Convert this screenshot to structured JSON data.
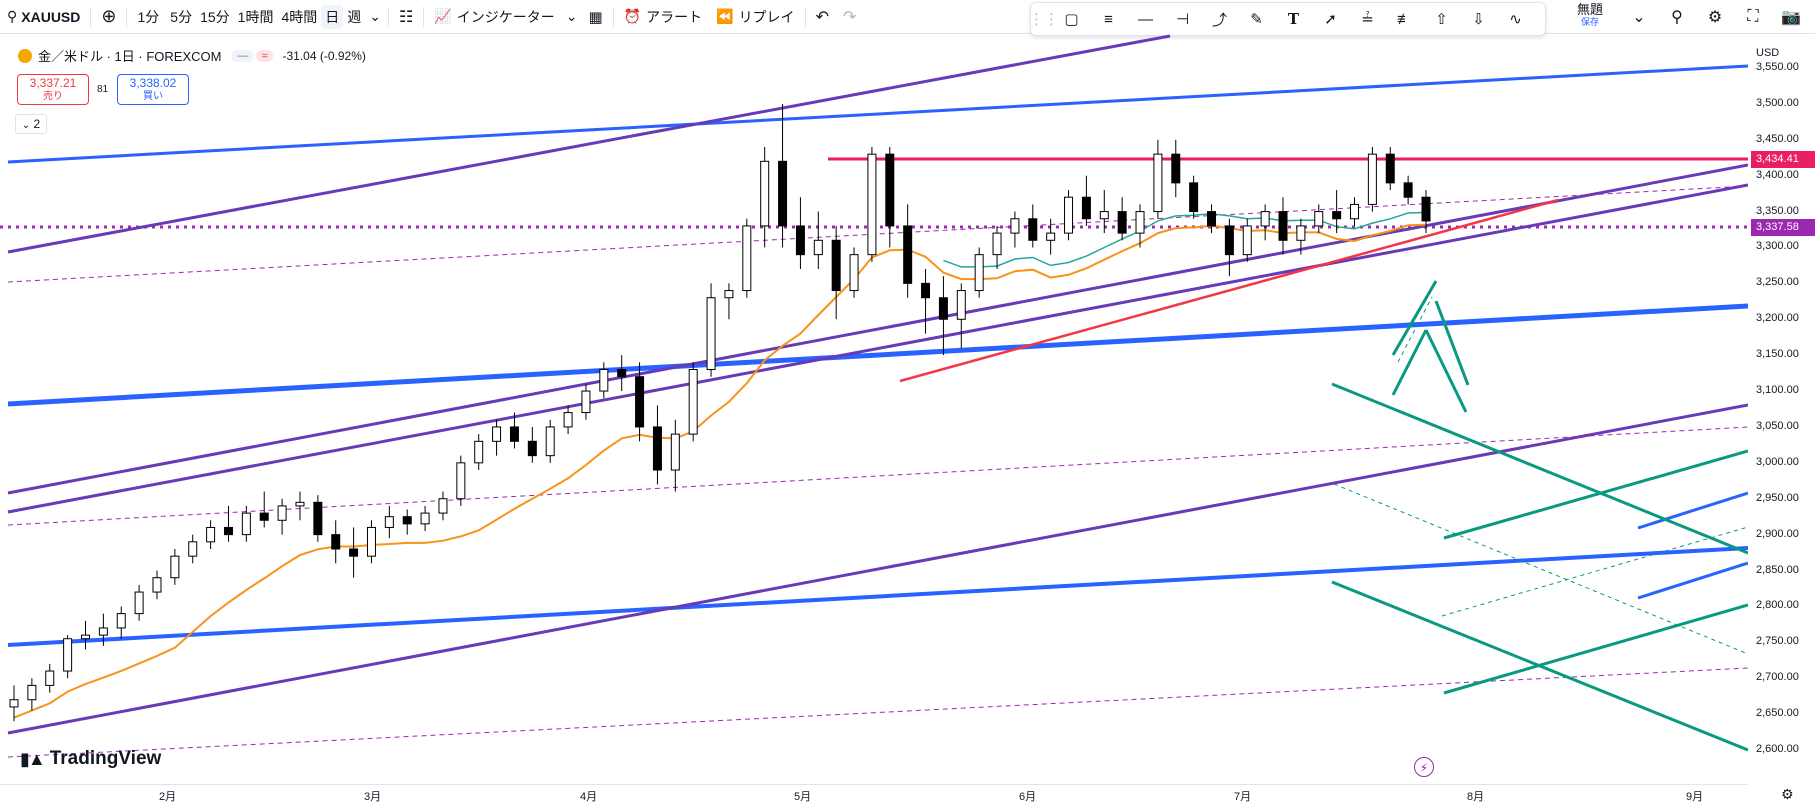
{
  "toolbar": {
    "symbol": "XAUUSD",
    "intervals": [
      "1分",
      "5分",
      "15分",
      "1時間",
      "4時間",
      "日",
      "週"
    ],
    "active_interval": "日",
    "indicators_label": "インジケーター",
    "alert_label": "アラート",
    "replay_label": "リプレイ"
  },
  "save": {
    "title": "無題",
    "subtitle": "保存"
  },
  "legend": {
    "title": "金／米ドル · 1日 · FOREXCOM",
    "change": "-31.04 (-0.92%)",
    "bid": {
      "price": "3,337.21",
      "label": "売り"
    },
    "ask": {
      "price": "3,338.02",
      "label": "買い"
    },
    "spread": "81",
    "indicator_count": "2"
  },
  "price_axis": {
    "currency": "USD",
    "labels": [
      "3,550.00",
      "3,500.00",
      "3,450.00",
      "3,400.00",
      "3,350.00",
      "3,300.00",
      "3,250.00",
      "3,200.00",
      "3,150.00",
      "3,100.00",
      "3,050.00",
      "3,000.00",
      "2,950.00",
      "2,900.00",
      "2,850.00",
      "2,800.00",
      "2,750.00",
      "2,700.00",
      "2,650.00",
      "2,600.00"
    ],
    "resistance_tag": "3,434.41",
    "current_tag": "3,337.58"
  },
  "time_axis": {
    "labels": [
      "2月",
      "3月",
      "4月",
      "5月",
      "6月",
      "7月",
      "8月",
      "9月"
    ]
  },
  "brand": "TradingView",
  "colors": {
    "up": "#ffffff",
    "down": "#000000",
    "ma_orange": "#f7931a",
    "ma_teal": "#26a69a",
    "blue": "#2962ff",
    "purple": "#673ab7",
    "red": "#f23645",
    "crimson": "#e91e63",
    "green": "#089981",
    "dotted_purple": "#9c27b0"
  },
  "chart_data": {
    "type": "candlestick",
    "symbol": "XAUUSD",
    "y_range": [
      2580,
      3580
    ],
    "x_categories": [
      "2月",
      "3月",
      "4月",
      "5月",
      "6月",
      "7月",
      "8月",
      "9月"
    ],
    "horizontal_levels": [
      3434.41,
      3337.58
    ],
    "candles_approx": [
      [
        2660,
        2690,
        2640,
        2670
      ],
      [
        2670,
        2700,
        2655,
        2690
      ],
      [
        2690,
        2720,
        2680,
        2710
      ],
      [
        2710,
        2760,
        2700,
        2755
      ],
      [
        2755,
        2780,
        2740,
        2760
      ],
      [
        2760,
        2790,
        2745,
        2770
      ],
      [
        2770,
        2800,
        2755,
        2790
      ],
      [
        2790,
        2830,
        2780,
        2820
      ],
      [
        2820,
        2850,
        2810,
        2840
      ],
      [
        2840,
        2880,
        2830,
        2870
      ],
      [
        2870,
        2900,
        2860,
        2890
      ],
      [
        2890,
        2920,
        2880,
        2910
      ],
      [
        2910,
        2940,
        2890,
        2900
      ],
      [
        2900,
        2940,
        2890,
        2930
      ],
      [
        2930,
        2960,
        2910,
        2920
      ],
      [
        2920,
        2950,
        2900,
        2940
      ],
      [
        2940,
        2960,
        2920,
        2945
      ],
      [
        2945,
        2955,
        2890,
        2900
      ],
      [
        2900,
        2920,
        2860,
        2880
      ],
      [
        2880,
        2910,
        2840,
        2870
      ],
      [
        2870,
        2920,
        2860,
        2910
      ],
      [
        2910,
        2940,
        2895,
        2925
      ],
      [
        2925,
        2935,
        2900,
        2915
      ],
      [
        2915,
        2940,
        2905,
        2930
      ],
      [
        2930,
        2960,
        2920,
        2950
      ],
      [
        2950,
        3010,
        2940,
        3000
      ],
      [
        3000,
        3040,
        2990,
        3030
      ],
      [
        3030,
        3060,
        3010,
        3050
      ],
      [
        3050,
        3070,
        3020,
        3030
      ],
      [
        3030,
        3050,
        3000,
        3010
      ],
      [
        3010,
        3060,
        3000,
        3050
      ],
      [
        3050,
        3080,
        3040,
        3070
      ],
      [
        3070,
        3110,
        3060,
        3100
      ],
      [
        3100,
        3140,
        3090,
        3130
      ],
      [
        3130,
        3150,
        3100,
        3120
      ],
      [
        3120,
        3140,
        3030,
        3050
      ],
      [
        3050,
        3080,
        2970,
        2990
      ],
      [
        2990,
        3060,
        2960,
        3040
      ],
      [
        3040,
        3140,
        3030,
        3130
      ],
      [
        3130,
        3250,
        3120,
        3230
      ],
      [
        3230,
        3250,
        3200,
        3240
      ],
      [
        3240,
        3340,
        3230,
        3330
      ],
      [
        3330,
        3440,
        3300,
        3420
      ],
      [
        3420,
        3500,
        3300,
        3330
      ],
      [
        3330,
        3370,
        3270,
        3290
      ],
      [
        3290,
        3350,
        3270,
        3310
      ],
      [
        3310,
        3330,
        3200,
        3240
      ],
      [
        3240,
        3300,
        3230,
        3290
      ],
      [
        3290,
        3440,
        3280,
        3430
      ],
      [
        3430,
        3440,
        3300,
        3330
      ],
      [
        3330,
        3360,
        3230,
        3250
      ],
      [
        3250,
        3270,
        3180,
        3230
      ],
      [
        3230,
        3260,
        3150,
        3200
      ],
      [
        3200,
        3250,
        3160,
        3240
      ],
      [
        3240,
        3300,
        3230,
        3290
      ],
      [
        3290,
        3330,
        3270,
        3320
      ],
      [
        3320,
        3350,
        3300,
        3340
      ],
      [
        3340,
        3360,
        3300,
        3310
      ],
      [
        3310,
        3340,
        3290,
        3320
      ],
      [
        3320,
        3380,
        3310,
        3370
      ],
      [
        3370,
        3400,
        3330,
        3340
      ],
      [
        3340,
        3380,
        3320,
        3350
      ],
      [
        3350,
        3370,
        3310,
        3320
      ],
      [
        3320,
        3360,
        3300,
        3350
      ],
      [
        3350,
        3450,
        3340,
        3430
      ],
      [
        3430,
        3450,
        3370,
        3390
      ],
      [
        3390,
        3400,
        3340,
        3350
      ],
      [
        3350,
        3360,
        3320,
        3330
      ],
      [
        3330,
        3340,
        3260,
        3290
      ],
      [
        3290,
        3340,
        3280,
        3330
      ],
      [
        3330,
        3360,
        3310,
        3350
      ],
      [
        3350,
        3370,
        3290,
        3310
      ],
      [
        3310,
        3340,
        3290,
        3330
      ],
      [
        3330,
        3360,
        3320,
        3350
      ],
      [
        3350,
        3380,
        3320,
        3340
      ],
      [
        3340,
        3370,
        3330,
        3360
      ],
      [
        3360,
        3440,
        3350,
        3430
      ],
      [
        3430,
        3440,
        3380,
        3390
      ],
      [
        3390,
        3400,
        3360,
        3370
      ],
      [
        3370,
        3380,
        3320,
        3337
      ]
    ]
  }
}
